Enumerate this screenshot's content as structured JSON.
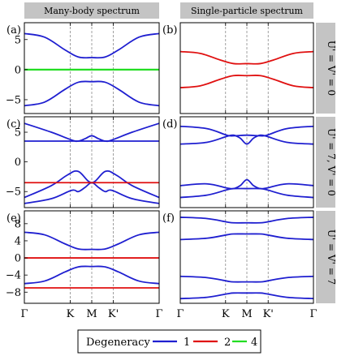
{
  "headers": [
    "Many-body spectrum",
    "Single-particle spectrum"
  ],
  "row_labels": [
    "U' = V' = 0",
    "U' = 7, V' = 0",
    "U' = V' = 7"
  ],
  "panel_labels": [
    "(a)",
    "(b)",
    "(c)",
    "(d)",
    "(e)",
    "(f)"
  ],
  "x_ticks": [
    "Γ",
    "K",
    "M",
    "K'",
    "Γ"
  ],
  "legend": {
    "title": "Degeneracy",
    "entries": [
      {
        "label": "1",
        "color": "#1f1fd0"
      },
      {
        "label": "2",
        "color": "#e01010"
      },
      {
        "label": "4",
        "color": "#22dd22"
      }
    ]
  },
  "chart_data": [
    {
      "panel": "(a)",
      "type": "line",
      "xlabel": "",
      "ylabel": "",
      "x_ticks": [
        "Γ",
        "K",
        "M",
        "K'",
        "Γ"
      ],
      "y_ticks": [
        5,
        0,
        -5
      ],
      "ylim": [
        -7.3,
        7.8
      ],
      "grid": "vertical dashed at K, M, K'",
      "series": [
        {
          "degeneracy": "1",
          "values": [
            [
              0,
              6
            ],
            [
              0.15,
              5.4
            ],
            [
              0.3,
              3.3
            ],
            [
              0.4,
              2.1
            ],
            [
              0.5,
              2.0
            ],
            [
              0.6,
              2.1
            ],
            [
              0.7,
              3.3
            ],
            [
              0.85,
              5.4
            ],
            [
              1,
              6
            ]
          ]
        },
        {
          "degeneracy": "1",
          "values": [
            [
              0,
              -6
            ],
            [
              0.15,
              -5.4
            ],
            [
              0.3,
              -3.3
            ],
            [
              0.4,
              -2.1
            ],
            [
              0.5,
              -2.0
            ],
            [
              0.6,
              -2.1
            ],
            [
              0.7,
              -3.3
            ],
            [
              0.85,
              -5.4
            ],
            [
              1,
              -6
            ]
          ]
        },
        {
          "degeneracy": "4",
          "values": [
            [
              0,
              0
            ],
            [
              1,
              0
            ]
          ]
        }
      ]
    },
    {
      "panel": "(b)",
      "type": "line",
      "xlabel": "",
      "ylabel": "",
      "x_ticks": [
        "Γ",
        "K",
        "M",
        "K'",
        "Γ"
      ],
      "ylim": [
        -7.3,
        7.8
      ],
      "grid": "vertical dashed at K, M, K'",
      "series": [
        {
          "degeneracy": "2",
          "values": [
            [
              0,
              3
            ],
            [
              0.15,
              2.7
            ],
            [
              0.3,
              1.6
            ],
            [
              0.4,
              1.0
            ],
            [
              0.5,
              1.0
            ],
            [
              0.6,
              1.0
            ],
            [
              0.7,
              1.6
            ],
            [
              0.85,
              2.7
            ],
            [
              1,
              3
            ]
          ]
        },
        {
          "degeneracy": "2",
          "values": [
            [
              0,
              -3
            ],
            [
              0.15,
              -2.7
            ],
            [
              0.3,
              -1.6
            ],
            [
              0.4,
              -1.0
            ],
            [
              0.5,
              -1.0
            ],
            [
              0.6,
              -1.0
            ],
            [
              0.7,
              -1.6
            ],
            [
              0.85,
              -2.7
            ],
            [
              1,
              -3
            ]
          ]
        }
      ]
    },
    {
      "panel": "(c)",
      "type": "line",
      "xlabel": "",
      "ylabel": "",
      "x_ticks": [
        "Γ",
        "K",
        "M",
        "K'",
        "Γ"
      ],
      "y_ticks": [
        5,
        0,
        -5
      ],
      "ylim": [
        -7.7,
        7.6
      ],
      "grid": "vertical dashed at K, M, K'",
      "series": [
        {
          "degeneracy": "1",
          "values": [
            [
              0,
              6.5
            ],
            [
              0.2,
              5.0
            ],
            [
              0.35,
              3.7
            ],
            [
              0.4,
              3.5
            ],
            [
              0.45,
              3.9
            ],
            [
              0.5,
              4.4
            ],
            [
              0.55,
              3.9
            ],
            [
              0.6,
              3.5
            ],
            [
              0.65,
              3.7
            ],
            [
              0.8,
              5.0
            ],
            [
              1,
              6.5
            ]
          ]
        },
        {
          "degeneracy": "1",
          "values": [
            [
              0,
              3.5
            ],
            [
              1,
              3.5
            ]
          ]
        },
        {
          "degeneracy": "1",
          "values": [
            [
              0,
              -6.0
            ],
            [
              0.2,
              -4.0
            ],
            [
              0.32,
              -2.2
            ],
            [
              0.4,
              -1.6
            ],
            [
              0.5,
              -3.5
            ],
            [
              0.6,
              -1.6
            ],
            [
              0.68,
              -2.2
            ],
            [
              0.8,
              -4.0
            ],
            [
              1,
              -6.0
            ]
          ]
        },
        {
          "degeneracy": "1",
          "values": [
            [
              0,
              -7.0
            ],
            [
              0.2,
              -6.2
            ],
            [
              0.35,
              -4.8
            ],
            [
              0.4,
              -5.0
            ],
            [
              0.45,
              -4.3
            ],
            [
              0.5,
              -3.5
            ],
            [
              0.55,
              -4.3
            ],
            [
              0.6,
              -5.0
            ],
            [
              0.65,
              -4.8
            ],
            [
              0.8,
              -6.2
            ],
            [
              1,
              -7.0
            ]
          ]
        },
        {
          "degeneracy": "2",
          "values": [
            [
              0,
              -3.5
            ],
            [
              1,
              -3.5
            ]
          ]
        }
      ]
    },
    {
      "panel": "(d)",
      "type": "line",
      "xlabel": "",
      "ylabel": "",
      "x_ticks": [
        "Γ",
        "K",
        "M",
        "K'",
        "Γ"
      ],
      "ylim": [
        -7.7,
        7.6
      ],
      "grid": "vertical dashed at K, M, K'",
      "series": [
        {
          "degeneracy": "1",
          "values": [
            [
              0,
              6.0
            ],
            [
              0.2,
              5.6
            ],
            [
              0.35,
              4.5
            ],
            [
              0.4,
              4.4
            ],
            [
              0.5,
              4.5
            ],
            [
              0.6,
              4.4
            ],
            [
              0.65,
              4.5
            ],
            [
              0.8,
              5.6
            ],
            [
              1,
              6.0
            ]
          ]
        },
        {
          "degeneracy": "1",
          "values": [
            [
              0,
              3.0
            ],
            [
              0.2,
              3.3
            ],
            [
              0.35,
              4.3
            ],
            [
              0.4,
              4.5
            ],
            [
              0.45,
              4.0
            ],
            [
              0.5,
              3.0
            ],
            [
              0.55,
              4.0
            ],
            [
              0.6,
              4.5
            ],
            [
              0.65,
              4.3
            ],
            [
              0.8,
              3.3
            ],
            [
              1,
              3.0
            ]
          ]
        },
        {
          "degeneracy": "1",
          "values": [
            [
              0,
              -4.0
            ],
            [
              0.2,
              -3.7
            ],
            [
              0.35,
              -4.4
            ],
            [
              0.4,
              -4.5
            ],
            [
              0.45,
              -4.0
            ],
            [
              0.5,
              -3.0
            ],
            [
              0.55,
              -4.0
            ],
            [
              0.6,
              -4.5
            ],
            [
              0.65,
              -4.4
            ],
            [
              0.8,
              -3.7
            ],
            [
              1,
              -4.0
            ]
          ]
        },
        {
          "degeneracy": "1",
          "values": [
            [
              0,
              -6.0
            ],
            [
              0.2,
              -5.6
            ],
            [
              0.35,
              -4.7
            ],
            [
              0.4,
              -4.5
            ],
            [
              0.5,
              -4.5
            ],
            [
              0.6,
              -4.5
            ],
            [
              0.65,
              -4.7
            ],
            [
              0.8,
              -5.6
            ],
            [
              1,
              -6.0
            ]
          ]
        }
      ]
    },
    {
      "panel": "(e)",
      "type": "line",
      "xlabel": "",
      "ylabel": "",
      "x_ticks": [
        "Γ",
        "K",
        "M",
        "K'",
        "Γ"
      ],
      "y_ticks": [
        8,
        4,
        0,
        -4,
        -8
      ],
      "ylim": [
        -10.6,
        11.0
      ],
      "grid": "vertical dashed at K, M, K'",
      "series": [
        {
          "degeneracy": "1",
          "values": [
            [
              0,
              6
            ],
            [
              0.15,
              5.4
            ],
            [
              0.3,
              3.3
            ],
            [
              0.4,
              2.1
            ],
            [
              0.5,
              2.0
            ],
            [
              0.6,
              2.1
            ],
            [
              0.7,
              3.3
            ],
            [
              0.85,
              5.4
            ],
            [
              1,
              6
            ]
          ]
        },
        {
          "degeneracy": "1",
          "values": [
            [
              0,
              -6
            ],
            [
              0.15,
              -5.4
            ],
            [
              0.3,
              -3.3
            ],
            [
              0.4,
              -2.1
            ],
            [
              0.5,
              -2.0
            ],
            [
              0.6,
              -2.1
            ],
            [
              0.7,
              -3.3
            ],
            [
              0.85,
              -5.4
            ],
            [
              1,
              -6
            ]
          ]
        },
        {
          "degeneracy": "2",
          "values": [
            [
              0,
              0
            ],
            [
              1,
              0
            ]
          ]
        },
        {
          "degeneracy": "2",
          "values": [
            [
              0,
              -7
            ],
            [
              1,
              -7
            ]
          ]
        }
      ]
    },
    {
      "panel": "(f)",
      "type": "line",
      "xlabel": "",
      "ylabel": "",
      "x_ticks": [
        "Γ",
        "K",
        "M",
        "K'",
        "Γ"
      ],
      "ylim": [
        -10.6,
        11.0
      ],
      "grid": "vertical dashed at K, M, K'",
      "series": [
        {
          "degeneracy": "1",
          "values": [
            [
              0,
              9.5
            ],
            [
              0.2,
              9.2
            ],
            [
              0.35,
              8.4
            ],
            [
              0.4,
              8.2
            ],
            [
              0.5,
              8.2
            ],
            [
              0.6,
              8.2
            ],
            [
              0.65,
              8.4
            ],
            [
              0.8,
              9.2
            ],
            [
              1,
              9.5
            ]
          ]
        },
        {
          "degeneracy": "1",
          "values": [
            [
              0,
              4.3
            ],
            [
              0.2,
              4.6
            ],
            [
              0.35,
              5.4
            ],
            [
              0.4,
              5.6
            ],
            [
              0.5,
              5.6
            ],
            [
              0.6,
              5.6
            ],
            [
              0.65,
              5.4
            ],
            [
              0.8,
              4.6
            ],
            [
              1,
              4.3
            ]
          ]
        },
        {
          "degeneracy": "1",
          "values": [
            [
              0,
              -4.3
            ],
            [
              0.2,
              -4.6
            ],
            [
              0.35,
              -5.4
            ],
            [
              0.4,
              -5.6
            ],
            [
              0.5,
              -5.6
            ],
            [
              0.6,
              -5.6
            ],
            [
              0.65,
              -5.4
            ],
            [
              0.8,
              -4.6
            ],
            [
              1,
              -4.3
            ]
          ]
        },
        {
          "degeneracy": "1",
          "values": [
            [
              0,
              -9.5
            ],
            [
              0.2,
              -9.2
            ],
            [
              0.35,
              -8.4
            ],
            [
              0.4,
              -8.2
            ],
            [
              0.5,
              -8.2
            ],
            [
              0.6,
              -8.2
            ],
            [
              0.65,
              -8.4
            ],
            [
              0.8,
              -9.2
            ],
            [
              1,
              -9.5
            ]
          ]
        }
      ]
    }
  ]
}
